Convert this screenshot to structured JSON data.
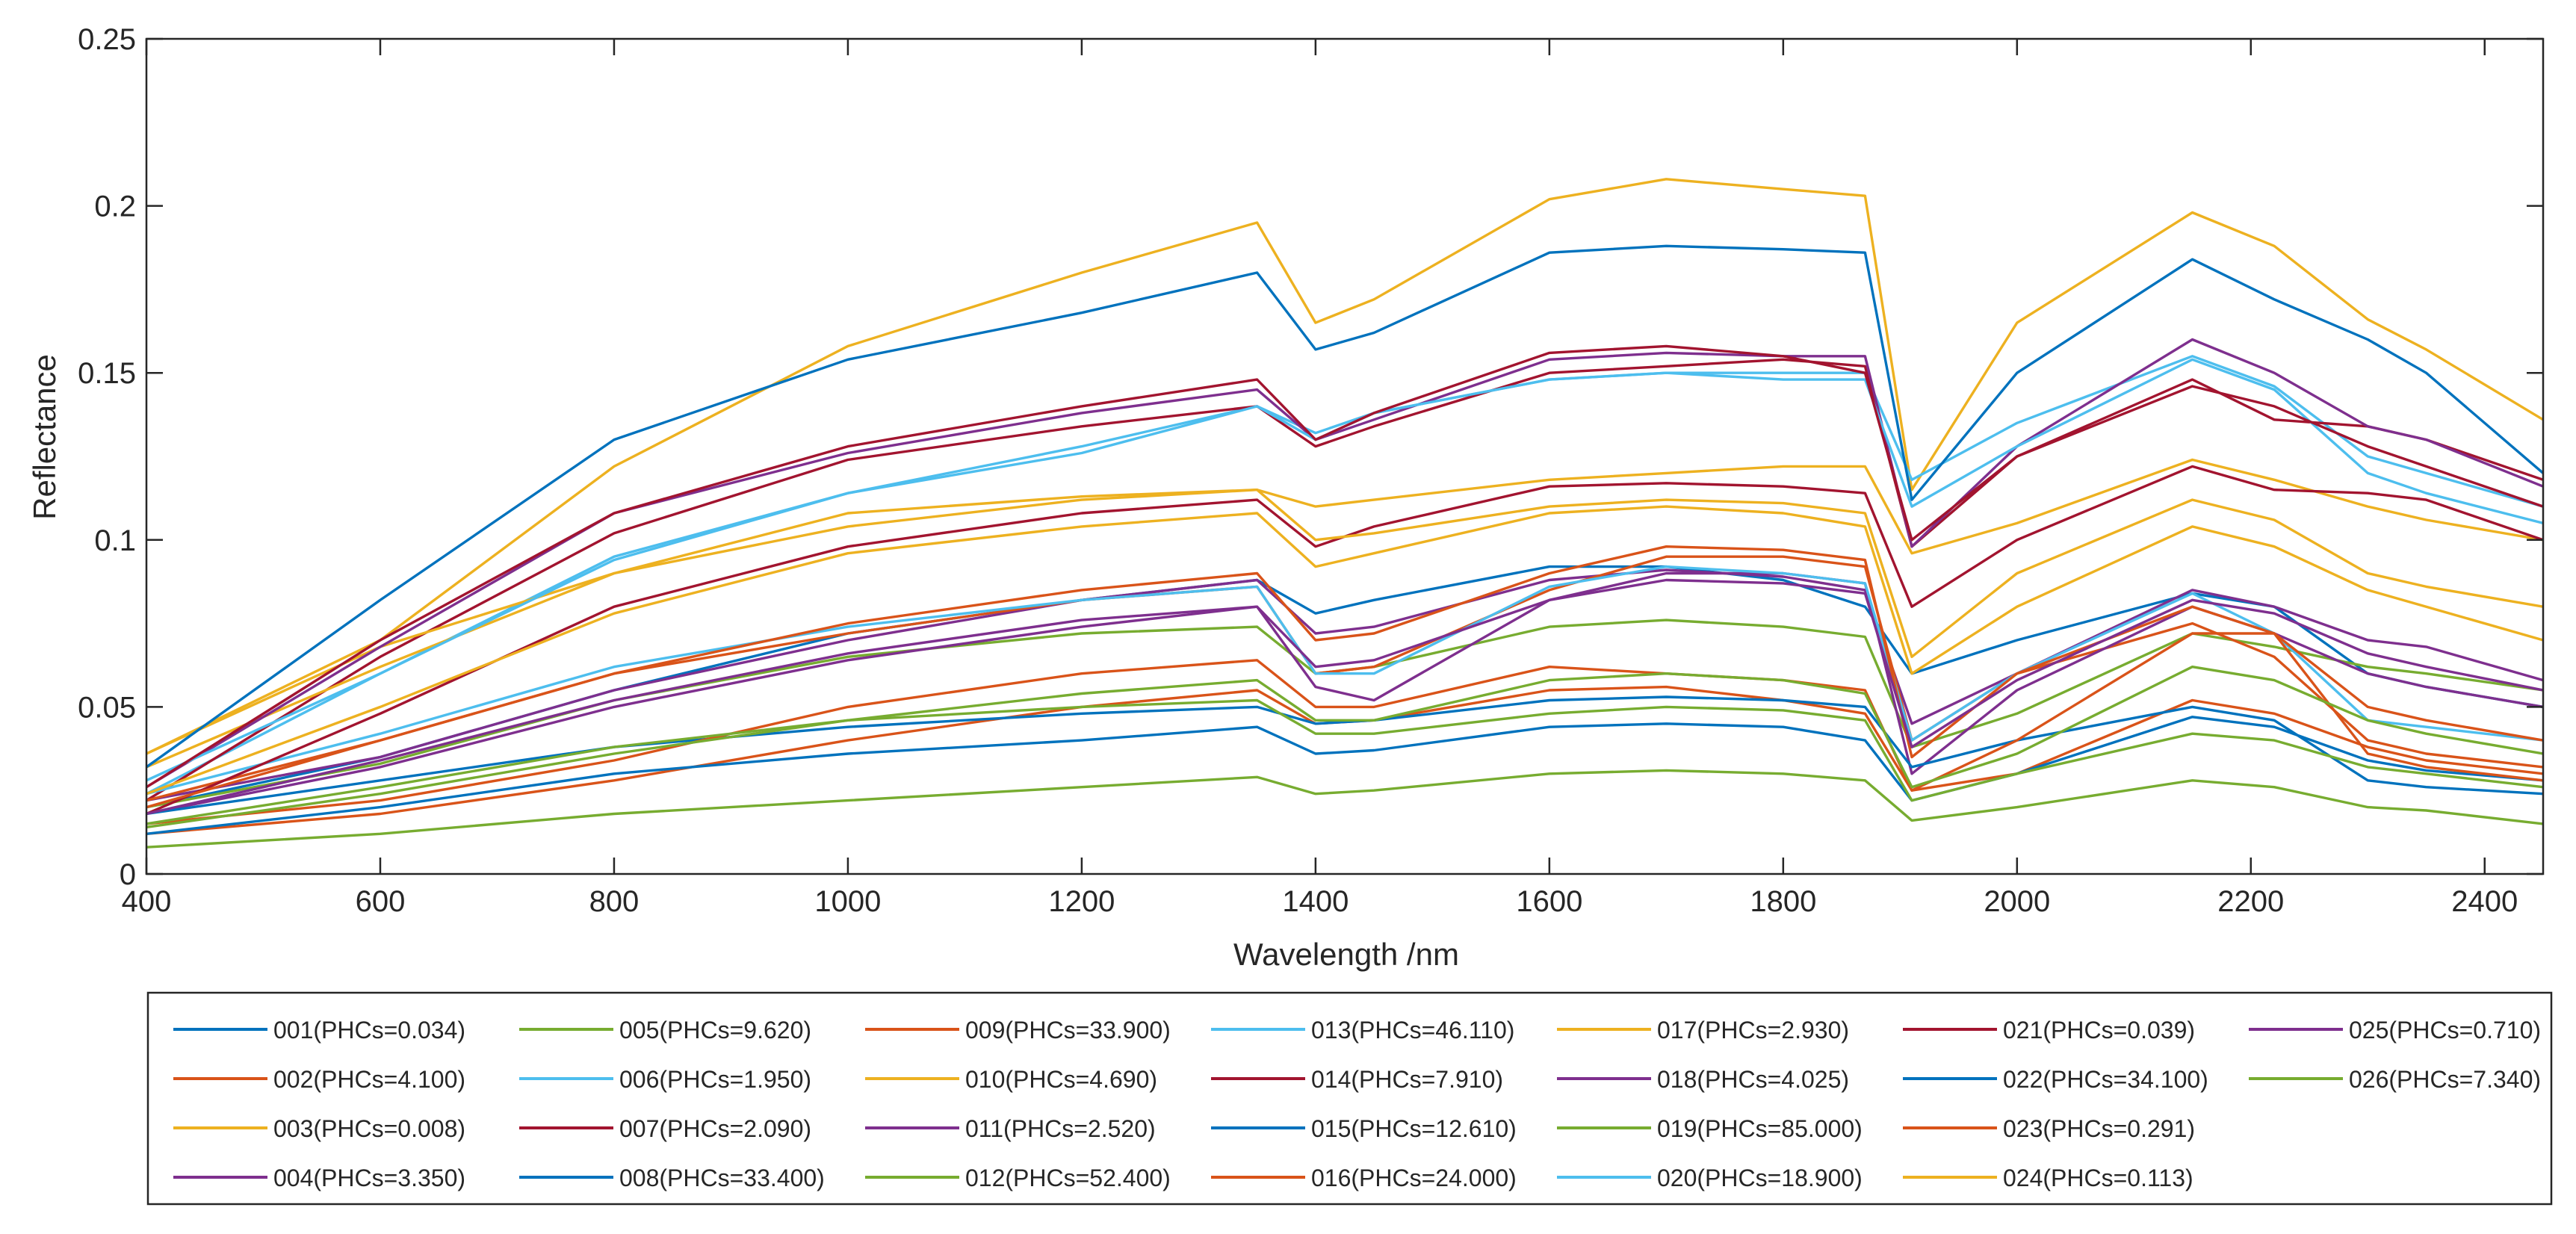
{
  "chart_data": {
    "type": "line",
    "title": "",
    "xlabel": "Wavelength /nm",
    "ylabel": "Reflectance",
    "xlim": [
      400,
      2450
    ],
    "ylim": [
      0,
      0.25
    ],
    "xticks": [
      400,
      600,
      800,
      1000,
      1200,
      1400,
      1600,
      1800,
      2000,
      2200,
      2400
    ],
    "xtick_labels": [
      "400",
      "600",
      "800",
      "1000",
      "1200",
      "1400",
      "1600",
      "1800",
      "2000",
      "2200",
      "2400"
    ],
    "yticks": [
      0,
      0.05,
      0.1,
      0.15,
      0.2,
      0.25
    ],
    "ytick_labels": [
      "0",
      "0.05",
      "0.1",
      "0.15",
      "0.2",
      "0.25"
    ],
    "grid": false,
    "legend_position": "bottom",
    "x": [
      400,
      600,
      800,
      1000,
      1200,
      1350,
      1400,
      1450,
      1600,
      1700,
      1800,
      1870,
      1910,
      2000,
      2150,
      2220,
      2300,
      2350,
      2450
    ],
    "series": [
      {
        "name": "001(PHCs=0.034)",
        "color": "#0072BD",
        "values": [
          0.02,
          0.035,
          0.055,
          0.072,
          0.082,
          0.088,
          0.078,
          0.082,
          0.092,
          0.092,
          0.088,
          0.08,
          0.06,
          0.07,
          0.084,
          0.08,
          0.06,
          0.056,
          0.05
        ]
      },
      {
        "name": "002(PHCs=4.100)",
        "color": "#D95319",
        "values": [
          0.012,
          0.018,
          0.028,
          0.04,
          0.05,
          0.055,
          0.045,
          0.046,
          0.055,
          0.056,
          0.052,
          0.048,
          0.025,
          0.03,
          0.052,
          0.048,
          0.038,
          0.034,
          0.03
        ]
      },
      {
        "name": "003(PHCs=0.008)",
        "color": "#EDB120",
        "values": [
          0.036,
          0.07,
          0.122,
          0.158,
          0.18,
          0.195,
          0.165,
          0.172,
          0.202,
          0.208,
          0.205,
          0.203,
          0.115,
          0.165,
          0.198,
          0.188,
          0.166,
          0.157,
          0.136
        ]
      },
      {
        "name": "004(PHCs=3.350)",
        "color": "#7E2F8E",
        "values": [
          0.022,
          0.035,
          0.055,
          0.07,
          0.082,
          0.088,
          0.072,
          0.074,
          0.088,
          0.091,
          0.089,
          0.085,
          0.045,
          0.06,
          0.085,
          0.08,
          0.07,
          0.068,
          0.058
        ]
      },
      {
        "name": "005(PHCs=9.620)",
        "color": "#77AC30",
        "values": [
          0.02,
          0.033,
          0.052,
          0.065,
          0.072,
          0.074,
          0.06,
          0.062,
          0.074,
          0.076,
          0.074,
          0.071,
          0.038,
          0.048,
          0.072,
          0.068,
          0.062,
          0.06,
          0.055
        ]
      },
      {
        "name": "006(PHCs=1.950)",
        "color": "#4DBEEE",
        "values": [
          0.024,
          0.06,
          0.095,
          0.114,
          0.128,
          0.14,
          0.132,
          0.138,
          0.148,
          0.15,
          0.15,
          0.15,
          0.118,
          0.135,
          0.155,
          0.146,
          0.125,
          0.12,
          0.11
        ]
      },
      {
        "name": "007(PHCs=2.090)",
        "color": "#A2142F",
        "values": [
          0.022,
          0.065,
          0.102,
          0.124,
          0.134,
          0.14,
          0.128,
          0.134,
          0.15,
          0.152,
          0.154,
          0.152,
          0.098,
          0.125,
          0.148,
          0.136,
          0.134,
          0.13,
          0.118
        ]
      },
      {
        "name": "008(PHCs=33.400)",
        "color": "#0072BD",
        "values": [
          0.012,
          0.02,
          0.03,
          0.036,
          0.04,
          0.044,
          0.036,
          0.037,
          0.044,
          0.045,
          0.044,
          0.04,
          0.022,
          0.03,
          0.047,
          0.044,
          0.034,
          0.031,
          0.028
        ]
      },
      {
        "name": "009(PHCs=33.900)",
        "color": "#D95319",
        "values": [
          0.022,
          0.04,
          0.06,
          0.072,
          0.082,
          0.086,
          0.06,
          0.062,
          0.085,
          0.095,
          0.095,
          0.092,
          0.04,
          0.06,
          0.075,
          0.065,
          0.04,
          0.036,
          0.032
        ]
      },
      {
        "name": "010(PHCs=4.690)",
        "color": "#EDB120",
        "values": [
          0.036,
          0.068,
          0.09,
          0.108,
          0.113,
          0.115,
          0.11,
          0.112,
          0.118,
          0.12,
          0.122,
          0.122,
          0.096,
          0.105,
          0.124,
          0.118,
          0.11,
          0.106,
          0.1
        ]
      },
      {
        "name": "011(PHCs=2.520)",
        "color": "#7E2F8E",
        "values": [
          0.018,
          0.032,
          0.05,
          0.064,
          0.074,
          0.08,
          0.056,
          0.052,
          0.082,
          0.09,
          0.09,
          0.087,
          0.03,
          0.055,
          0.08,
          0.072,
          0.06,
          0.056,
          0.05
        ]
      },
      {
        "name": "012(PHCs=52.400)",
        "color": "#77AC30",
        "values": [
          0.008,
          0.012,
          0.018,
          0.022,
          0.026,
          0.029,
          0.024,
          0.025,
          0.03,
          0.031,
          0.03,
          0.028,
          0.016,
          0.02,
          0.028,
          0.026,
          0.02,
          0.019,
          0.015
        ]
      },
      {
        "name": "013(PHCs=46.110)",
        "color": "#4DBEEE",
        "values": [
          0.024,
          0.042,
          0.062,
          0.074,
          0.082,
          0.086,
          0.06,
          0.06,
          0.086,
          0.092,
          0.09,
          0.087,
          0.04,
          0.06,
          0.084,
          0.072,
          0.046,
          0.044,
          0.04
        ]
      },
      {
        "name": "014(PHCs=7.910)",
        "color": "#A2142F",
        "values": [
          0.018,
          0.048,
          0.08,
          0.098,
          0.108,
          0.112,
          0.098,
          0.104,
          0.116,
          0.117,
          0.116,
          0.114,
          0.08,
          0.1,
          0.122,
          0.115,
          0.114,
          0.112,
          0.1
        ]
      },
      {
        "name": "015(PHCs=12.610)",
        "color": "#0072BD",
        "values": [
          0.018,
          0.028,
          0.038,
          0.044,
          0.048,
          0.05,
          0.045,
          0.046,
          0.052,
          0.053,
          0.052,
          0.05,
          0.032,
          0.04,
          0.05,
          0.046,
          0.028,
          0.026,
          0.024
        ]
      },
      {
        "name": "016(PHCs=24.000)",
        "color": "#D95319",
        "values": [
          0.015,
          0.022,
          0.034,
          0.05,
          0.06,
          0.064,
          0.05,
          0.05,
          0.062,
          0.06,
          0.058,
          0.055,
          0.025,
          0.04,
          0.072,
          0.072,
          0.036,
          0.032,
          0.028
        ]
      },
      {
        "name": "017(PHCs=2.930)",
        "color": "#EDB120",
        "values": [
          0.032,
          0.062,
          0.09,
          0.104,
          0.112,
          0.115,
          0.1,
          0.102,
          0.11,
          0.112,
          0.111,
          0.108,
          0.065,
          0.09,
          0.112,
          0.106,
          0.09,
          0.086,
          0.08
        ]
      },
      {
        "name": "018(PHCs=4.025)",
        "color": "#7E2F8E",
        "values": [
          0.026,
          0.068,
          0.108,
          0.126,
          0.138,
          0.145,
          0.13,
          0.136,
          0.154,
          0.156,
          0.155,
          0.155,
          0.098,
          0.128,
          0.16,
          0.15,
          0.134,
          0.13,
          0.116
        ]
      },
      {
        "name": "019(PHCs=85.000)",
        "color": "#77AC30",
        "values": [
          0.015,
          0.026,
          0.038,
          0.046,
          0.05,
          0.052,
          0.042,
          0.042,
          0.048,
          0.05,
          0.049,
          0.046,
          0.022,
          0.03,
          0.042,
          0.04,
          0.032,
          0.03,
          0.026
        ]
      },
      {
        "name": "020(PHCs=18.900)",
        "color": "#4DBEEE",
        "values": [
          0.028,
          0.06,
          0.094,
          0.114,
          0.126,
          0.14,
          0.13,
          0.138,
          0.148,
          0.15,
          0.148,
          0.148,
          0.11,
          0.128,
          0.154,
          0.145,
          0.12,
          0.114,
          0.105
        ]
      },
      {
        "name": "021(PHCs=0.039)",
        "color": "#A2142F",
        "values": [
          0.026,
          0.07,
          0.108,
          0.128,
          0.14,
          0.148,
          0.13,
          0.138,
          0.156,
          0.158,
          0.155,
          0.15,
          0.1,
          0.125,
          0.146,
          0.14,
          0.128,
          0.122,
          0.11
        ]
      },
      {
        "name": "022(PHCs=34.100)",
        "color": "#0072BD",
        "values": [
          0.032,
          0.082,
          0.13,
          0.154,
          0.168,
          0.18,
          0.157,
          0.162,
          0.186,
          0.188,
          0.187,
          0.186,
          0.112,
          0.15,
          0.184,
          0.172,
          0.16,
          0.15,
          0.12
        ]
      },
      {
        "name": "023(PHCs=0.291)",
        "color": "#D95319",
        "values": [
          0.02,
          0.04,
          0.06,
          0.075,
          0.085,
          0.09,
          0.07,
          0.072,
          0.09,
          0.098,
          0.097,
          0.094,
          0.035,
          0.06,
          0.08,
          0.072,
          0.05,
          0.046,
          0.04
        ]
      },
      {
        "name": "024(PHCs=0.113)",
        "color": "#EDB120",
        "values": [
          0.024,
          0.05,
          0.078,
          0.096,
          0.104,
          0.108,
          0.092,
          0.096,
          0.108,
          0.11,
          0.108,
          0.104,
          0.06,
          0.08,
          0.104,
          0.098,
          0.085,
          0.08,
          0.07
        ]
      },
      {
        "name": "025(PHCs=0.710)",
        "color": "#7E2F8E",
        "values": [
          0.018,
          0.034,
          0.052,
          0.066,
          0.076,
          0.08,
          0.062,
          0.064,
          0.082,
          0.088,
          0.087,
          0.084,
          0.038,
          0.058,
          0.082,
          0.078,
          0.066,
          0.062,
          0.055
        ]
      },
      {
        "name": "026(PHCs=7.340)",
        "color": "#77AC30",
        "values": [
          0.014,
          0.024,
          0.036,
          0.046,
          0.054,
          0.058,
          0.046,
          0.046,
          0.058,
          0.06,
          0.058,
          0.054,
          0.026,
          0.036,
          0.062,
          0.058,
          0.046,
          0.042,
          0.036
        ]
      }
    ]
  }
}
